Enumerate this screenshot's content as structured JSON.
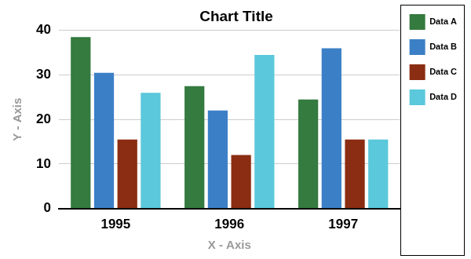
{
  "chart_data": {
    "type": "bar",
    "title": "Chart Title",
    "x_label": "X - Axis",
    "y_label": "Y - Axis",
    "categories": [
      "1995",
      "1996",
      "1997"
    ],
    "series": [
      {
        "name": "Data A",
        "color": "#357a3f",
        "values": [
          38.5,
          27.5,
          24.5
        ]
      },
      {
        "name": "Data B",
        "color": "#3b80c6",
        "values": [
          30.5,
          22,
          36
        ]
      },
      {
        "name": "Data C",
        "color": "#8a2d12",
        "values": [
          15.5,
          12,
          15.5
        ]
      },
      {
        "name": "Data D",
        "color": "#5bc8db",
        "values": [
          26,
          34.5,
          15.5
        ]
      }
    ],
    "ylim": [
      0,
      40
    ],
    "yticks": [
      0,
      10,
      20,
      30,
      40
    ],
    "grid": true,
    "legend": "right"
  }
}
